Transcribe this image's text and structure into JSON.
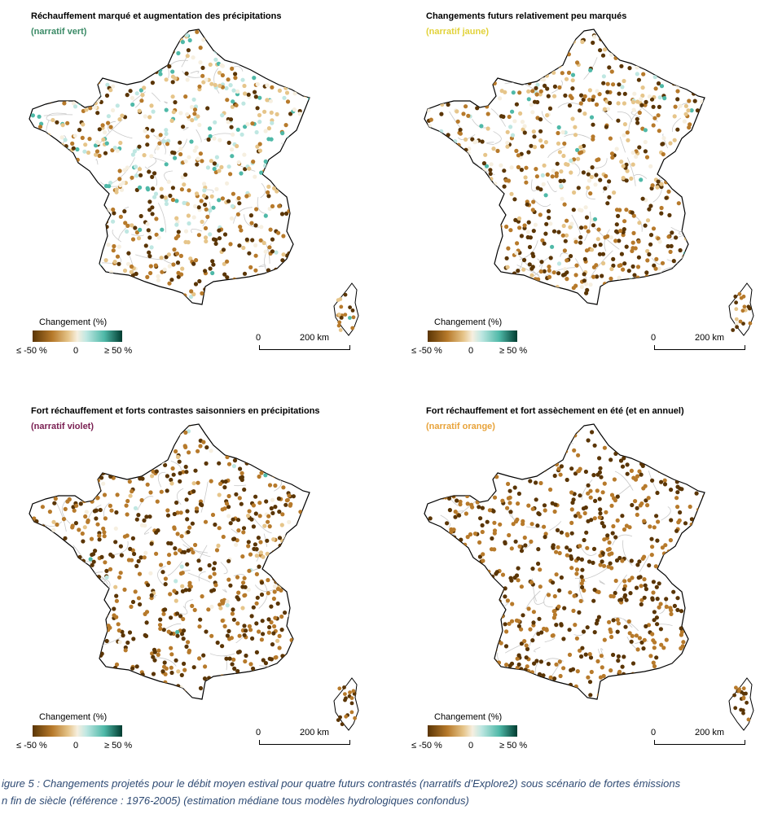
{
  "panels": [
    {
      "title": "Réchauffement marqué et augmentation des précipitations",
      "subtitle": "(narratif vert)",
      "subtitle_color": "#3a8a66",
      "palette_mix": {
        "brown": 0.3,
        "light": 0.4,
        "teal": 0.3
      }
    },
    {
      "title": "Changements futurs relativement peu marqués",
      "subtitle": "(narratif jaune)",
      "subtitle_color": "#e2d23a",
      "palette_mix": {
        "brown": 0.55,
        "light": 0.35,
        "teal": 0.1
      }
    },
    {
      "title": "Fort réchauffement et forts contrastes saisonniers en précipitations",
      "subtitle": "(narratif violet)",
      "subtitle_color": "#7a1f52",
      "palette_mix": {
        "brown": 0.85,
        "light": 0.13,
        "teal": 0.02
      }
    },
    {
      "title": "Fort réchauffement et fort assèchement en été (et en annuel)",
      "subtitle": "(narratif orange)",
      "subtitle_color": "#e8a33a",
      "palette_mix": {
        "brown": 1.0,
        "light": 0.0,
        "teal": 0.0
      }
    }
  ],
  "legend": {
    "title": "Changement (%)",
    "min_label": "≤ -50 %",
    "zero_label": "0",
    "max_label": "≥ 50 %",
    "colors": [
      "#5a3505",
      "#b77a2b",
      "#e6c58a",
      "#f6efe0",
      "#bfe7e2",
      "#4fb9a8",
      "#003c30"
    ]
  },
  "scale": {
    "zero_label": "0",
    "distance_label": "200 km"
  },
  "caption": {
    "line1": "igure 5 : Changements projetés pour le débit moyen estival pour quatre futurs contrastés (narratifs d’Explore2) sous scénario de fortes émissions",
    "line2": "n fin de siècle (référence : 1976-2005) (estimation médiane tous modèles hydrologiques confondus)"
  }
}
